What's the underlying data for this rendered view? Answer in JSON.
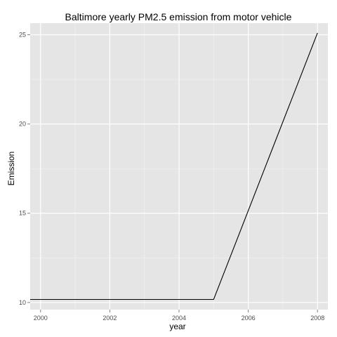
{
  "chart_data": {
    "type": "line",
    "title": "Baltimore yearly PM2.5 emission from motor vehicle",
    "xlabel": "year",
    "ylabel": "Emission",
    "xlim": [
      1999.7,
      2008.3
    ],
    "ylim": [
      9.6,
      25.65
    ],
    "x_ticks": [
      2000,
      2002,
      2004,
      2006,
      2008
    ],
    "x_tick_labels": [
      "2000",
      "2002",
      "2004",
      "2006",
      "2008"
    ],
    "y_ticks": [
      10,
      15,
      20,
      25
    ],
    "y_tick_labels": [
      "10",
      "15",
      "20",
      "25"
    ],
    "grid": true,
    "series": [
      {
        "x": [
          1999,
          2002,
          2005,
          2008
        ],
        "y": [
          10.17,
          10.17,
          10.17,
          25.1
        ],
        "color": "#000000"
      }
    ],
    "colors": {
      "panel_background": "#e5e5e5",
      "grid_major": "#ffffff",
      "grid_minor": "#f2f2f2",
      "line": "#000000"
    }
  }
}
